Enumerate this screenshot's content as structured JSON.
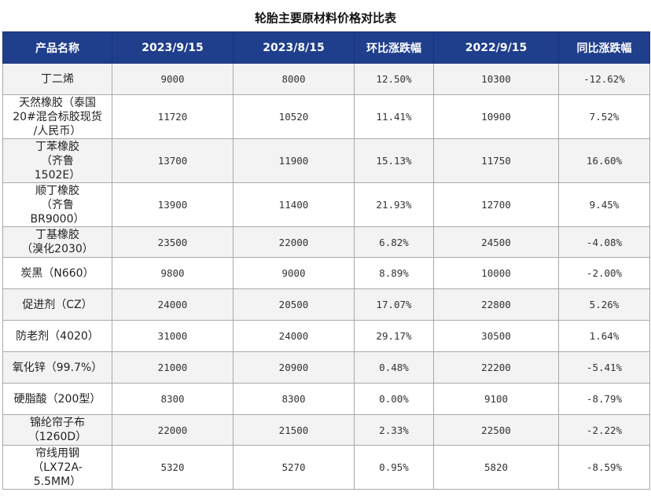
{
  "title": "轮胎主要原材料价格对比表",
  "headers": [
    "产品名称",
    "2023/9/15",
    "2023/8/15",
    "环比涨跌幅",
    "2022/9/15",
    "同比涨跌幅"
  ],
  "rows": [
    {
      "name_lines": [
        "丁二烯"
      ],
      "v1": "9000",
      "v2": "8000",
      "mom": "12.50%",
      "v3": "10300",
      "yoy": "-12.62%"
    },
    {
      "name_lines": [
        "天然橡胶（泰国",
        "20#混合标胶现货",
        "/人民币）"
      ],
      "v1": "11720",
      "v2": "10520",
      "mom": "11.41%",
      "v3": "10900",
      "yoy": "7.52%"
    },
    {
      "name_lines": [
        "丁苯橡胶",
        "（齐鲁",
        "1502E）"
      ],
      "v1": "13700",
      "v2": "11900",
      "mom": "15.13%",
      "v3": "11750",
      "yoy": "16.60%"
    },
    {
      "name_lines": [
        "顺丁橡胶",
        "（齐鲁",
        "BR9000）"
      ],
      "v1": "13900",
      "v2": "11400",
      "mom": "21.93%",
      "v3": "12700",
      "yoy": "9.45%"
    },
    {
      "name_lines": [
        "丁基橡胶",
        "（溴化2030）"
      ],
      "v1": "23500",
      "v2": "22000",
      "mom": "6.82%",
      "v3": "24500",
      "yoy": "-4.08%"
    },
    {
      "name_lines": [
        "炭黑（N660）"
      ],
      "v1": "9800",
      "v2": "9000",
      "mom": "8.89%",
      "v3": "10000",
      "yoy": "-2.00%"
    },
    {
      "name_lines": [
        "促进剂（CZ）"
      ],
      "v1": "24000",
      "v2": "20500",
      "mom": "17.07%",
      "v3": "22800",
      "yoy": "5.26%"
    },
    {
      "name_lines": [
        "防老剂（4020）"
      ],
      "v1": "31000",
      "v2": "24000",
      "mom": "29.17%",
      "v3": "30500",
      "yoy": "1.64%"
    },
    {
      "name_lines": [
        "氧化锌（99.7%）"
      ],
      "v1": "21000",
      "v2": "20900",
      "mom": "0.48%",
      "v3": "22200",
      "yoy": "-5.41%"
    },
    {
      "name_lines": [
        "硬脂酸（200型）"
      ],
      "v1": "8300",
      "v2": "8300",
      "mom": "0.00%",
      "v3": "9100",
      "yoy": "-8.79%"
    },
    {
      "name_lines": [
        "锦纶帘子布",
        "（1260D）"
      ],
      "v1": "22000",
      "v2": "21500",
      "mom": "2.33%",
      "v3": "22500",
      "yoy": "-2.22%"
    },
    {
      "name_lines": [
        "帘线用钢",
        "（LX72A-",
        "5.5MM）"
      ],
      "v1": "5320",
      "v2": "5270",
      "mom": "0.95%",
      "v3": "5820",
      "yoy": "-8.59%"
    }
  ],
  "colors": {
    "header_bg": "#1f3e8c",
    "header_text": "#ffffff",
    "zebra": "#f3f3f3"
  }
}
